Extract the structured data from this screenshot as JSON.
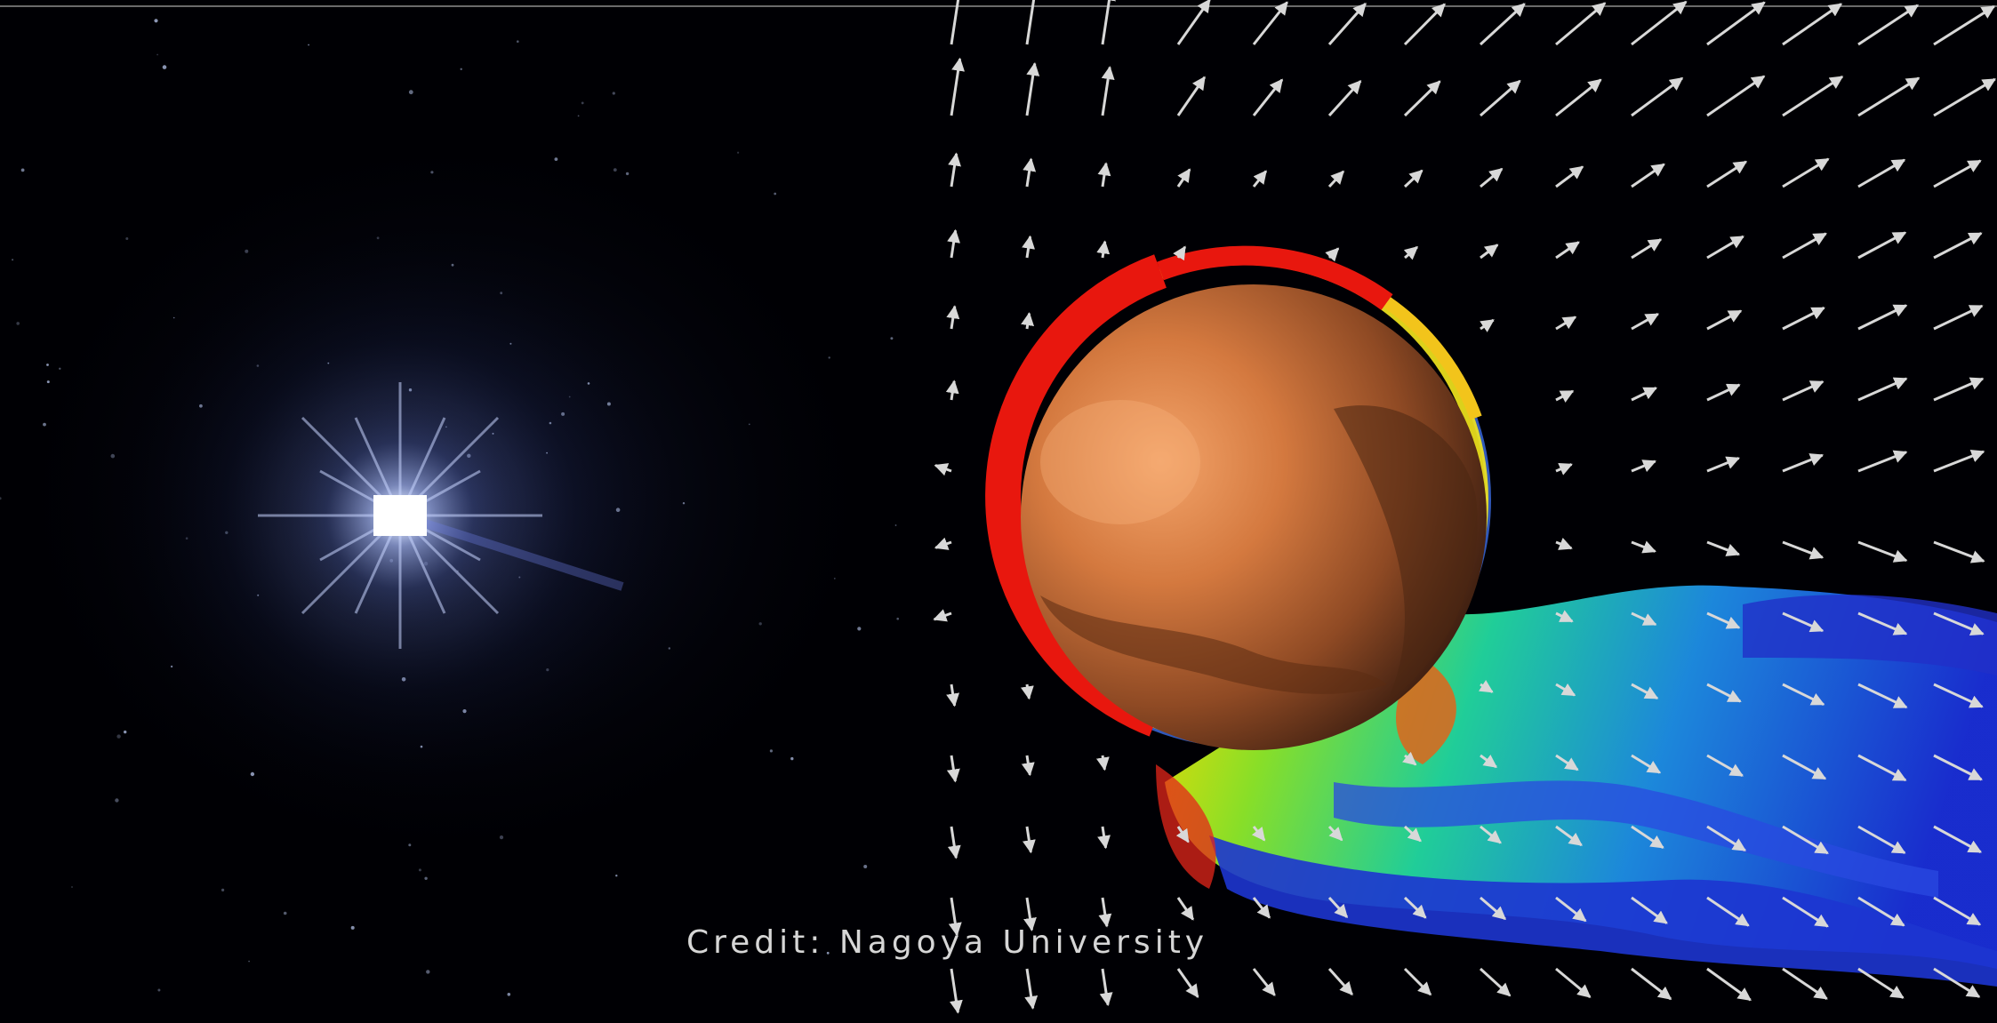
{
  "credit": "Credit: Nagoya University"
}
